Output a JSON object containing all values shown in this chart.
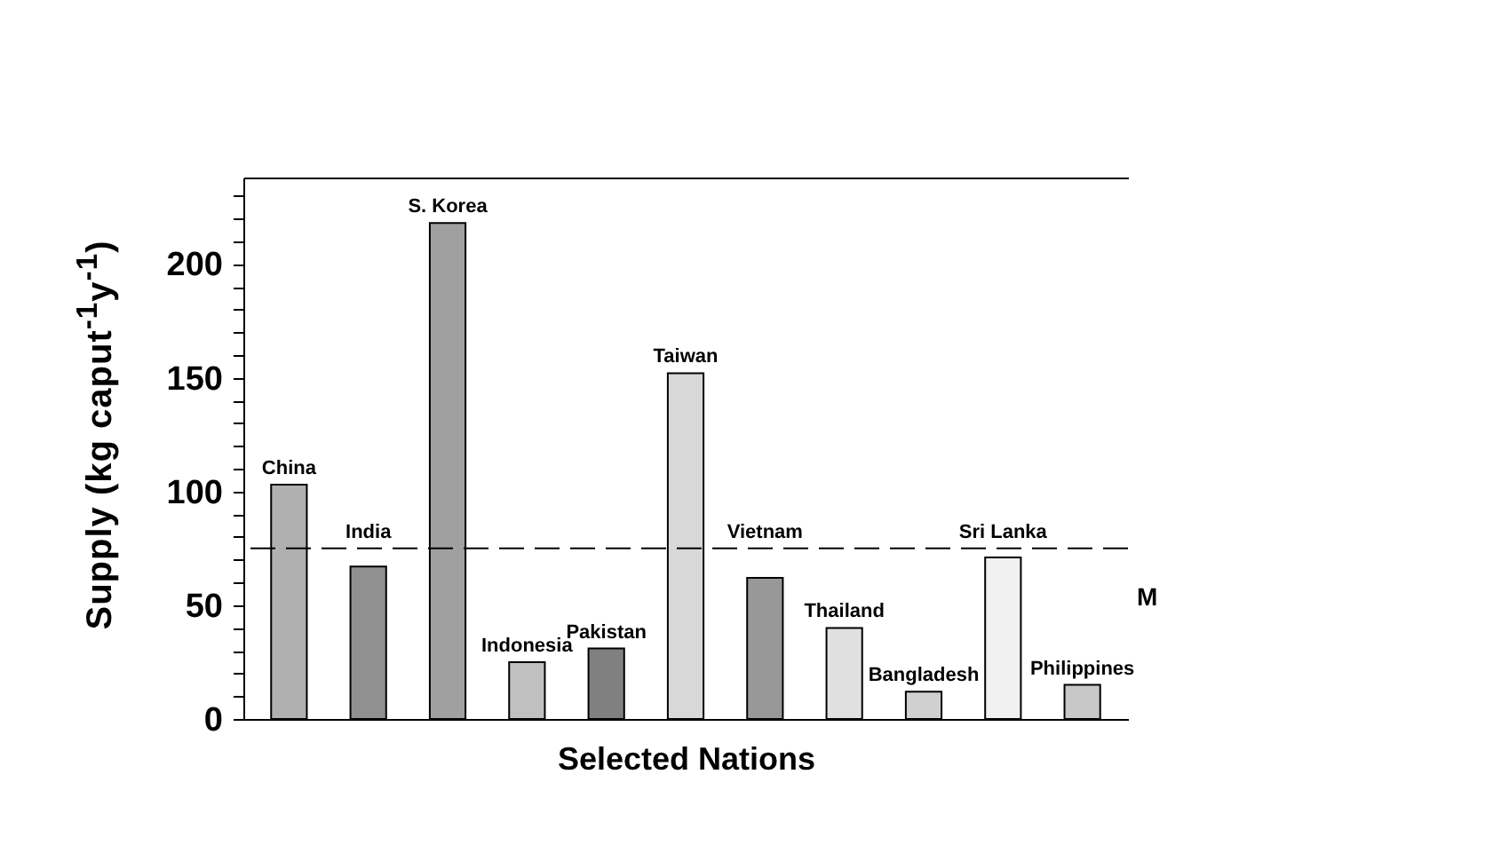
{
  "chart_data": {
    "type": "bar",
    "xlabel": "Selected Nations",
    "ylabel": "Supply (kg caput$^{-1}$y$^{-1}$)",
    "categories": [
      "China",
      "India",
      "S. Korea",
      "Indonesia",
      "Pakistan",
      "Taiwan",
      "Vietnam",
      "Thailand",
      "Bangladesh",
      "Sri Lanka",
      "Philippines"
    ],
    "values": [
      103,
      67,
      218,
      25,
      31,
      152,
      62,
      40,
      12,
      71,
      15
    ],
    "colors": [
      "#b0b0b0",
      "#909090",
      "#a0a0a0",
      "#c0c0c0",
      "#808080",
      "#d8d8d8",
      "#989898",
      "#e0e0e0",
      "#d0d0d0",
      "#f0f0f0",
      "#c8c8c8"
    ],
    "ylim": [
      0,
      238
    ],
    "yticks": [
      0,
      {
        "value": 10,
        "label": null
      },
      {
        "value": 20,
        "label": null
      },
      {
        "value": 30,
        "label": null
      },
      {
        "value": 40,
        "label": null
      },
      50,
      {
        "value": 60,
        "label": null
      },
      {
        "value": 70,
        "label": null
      },
      {
        "value": 80,
        "label": null
      },
      {
        "value": 90,
        "label": null
      },
      100,
      {
        "value": 110,
        "label": null
      },
      {
        "value": 120,
        "label": null
      },
      {
        "value": 130,
        "label": null
      },
      {
        "value": 140,
        "label": null
      },
      150,
      {
        "value": 160,
        "label": null
      },
      {
        "value": 170,
        "label": null
      },
      {
        "value": 180,
        "label": null
      },
      {
        "value": 190,
        "label": null
      },
      200,
      {
        "value": 210,
        "label": null
      },
      {
        "value": 220,
        "label": null
      },
      {
        "value": 230,
        "label": null
      }
    ],
    "ref_lines": [
      {
        "axis": "y",
        "value": 75,
        "line_style": "dashed",
        "color": "#000000"
      }
    ],
    "annotations": [
      "M"
    ],
    "tick_labels": "y",
    "grid": false
  }
}
